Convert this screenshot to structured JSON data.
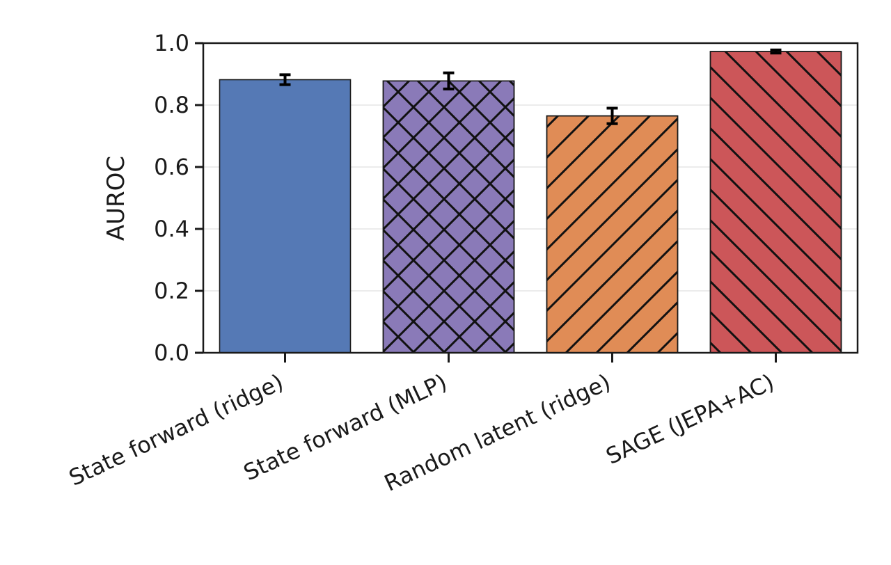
{
  "chart_data": {
    "type": "bar",
    "categories": [
      "State forward (ridge)",
      "State forward (MLP)",
      "Random latent (ridge)",
      "SAGE (JEPA+AC)"
    ],
    "values": [
      0.882,
      0.878,
      0.765,
      0.973
    ],
    "errors": [
      0.016,
      0.026,
      0.025,
      0.005
    ],
    "colors": [
      "#5579b5",
      "#8a7ab8",
      "#e08c56",
      "#cc5659"
    ],
    "hatch": [
      "none",
      "crosshatch",
      "forward-diagonal",
      "back-diagonal"
    ],
    "title": "",
    "xlabel": "",
    "ylabel": "AUROC",
    "ylim": [
      0,
      1.0
    ],
    "yticks": [
      "0.0",
      "0.2",
      "0.4",
      "0.6",
      "0.8",
      "1.0"
    ],
    "grid": "horizontal"
  }
}
